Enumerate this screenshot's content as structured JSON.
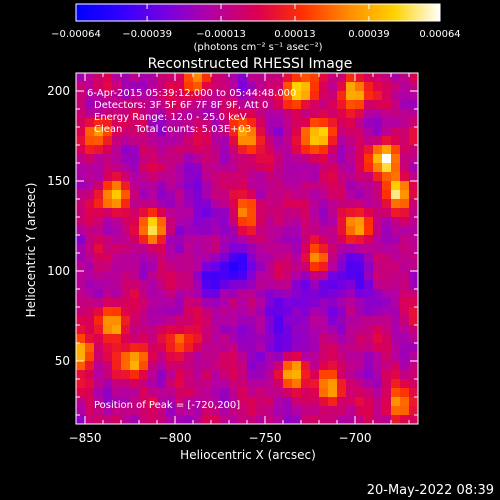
{
  "chart_data": {
    "type": "heatmap",
    "title": "Reconstructed RHESSI Image",
    "xlabel": "Heliocentric X (arcsec)",
    "ylabel": "Heliocentric Y (arcsec)",
    "xlim": [
      -855,
      -665
    ],
    "ylim": [
      15,
      210
    ],
    "x_ticks": [
      -850,
      -800,
      -750,
      -700
    ],
    "y_ticks": [
      50,
      100,
      150,
      200
    ],
    "colorbar": {
      "min": -0.00064,
      "max": 0.00064,
      "tick_values": [
        -0.00064,
        -0.00039,
        -0.00013,
        0.00013,
        0.00039,
        0.00064
      ],
      "tick_labels": [
        "-0.00064",
        "-0.00039",
        "-0.00013",
        "0.00013",
        "0.00039",
        "0.00064"
      ],
      "units": "(photons cm⁻² s⁻¹ asec⁻²)",
      "colormap": [
        "#0000ff",
        "#3200ff",
        "#7800e0",
        "#b400a0",
        "#dc0050",
        "#ff3200",
        "#ff8c00",
        "#ffd200",
        "#ffffff"
      ]
    },
    "annotations": {
      "time_range": "6-Apr-2015 05:39:12.000 to 05:44:48.000",
      "detectors": "Detectors: 3F 5F 6F 7F 8F 9F, Att 0",
      "energy": "Energy Range: 12.0 - 25.0 keV",
      "clean": "Clean    Total counts: 5.03E+03",
      "peak": "Position of Peak = [-720,200]"
    },
    "hot_spots": [
      {
        "x": -700,
        "y": 200,
        "value": 0.00052
      },
      {
        "x": -720,
        "y": 175,
        "value": 0.00058
      },
      {
        "x": -730,
        "y": 200,
        "value": 0.00064
      },
      {
        "x": -760,
        "y": 175,
        "value": 0.00046
      },
      {
        "x": -835,
        "y": 140,
        "value": 0.00045
      },
      {
        "x": -812,
        "y": 125,
        "value": 0.0005
      },
      {
        "x": -683,
        "y": 162,
        "value": 0.0006
      },
      {
        "x": -676,
        "y": 145,
        "value": 0.00048
      },
      {
        "x": -842,
        "y": 178,
        "value": 0.00036
      },
      {
        "x": -833,
        "y": 70,
        "value": 0.00048
      },
      {
        "x": -822,
        "y": 50,
        "value": 0.00042
      },
      {
        "x": -852,
        "y": 55,
        "value": 0.00052
      },
      {
        "x": -795,
        "y": 60,
        "value": 0.00032
      },
      {
        "x": -735,
        "y": 45,
        "value": 0.00042
      },
      {
        "x": -715,
        "y": 35,
        "value": 0.00048
      },
      {
        "x": -675,
        "y": 25,
        "value": 0.0004
      },
      {
        "x": -720,
        "y": 105,
        "value": 0.0003
      },
      {
        "x": -760,
        "y": 135,
        "value": 0.0003
      },
      {
        "x": -790,
        "y": 205,
        "value": 0.00028
      },
      {
        "x": -700,
        "y": 125,
        "value": 0.00034
      }
    ],
    "cold_spots": [
      {
        "x": -770,
        "y": 100,
        "value": -0.00046
      },
      {
        "x": -745,
        "y": 60,
        "value": -0.00034
      },
      {
        "x": -705,
        "y": 95,
        "value": -0.00042
      },
      {
        "x": -790,
        "y": 135,
        "value": -0.0003
      },
      {
        "x": -730,
        "y": 80,
        "value": -0.0003
      }
    ]
  },
  "footer": {
    "timestamp": "20-May-2022 08:39"
  }
}
